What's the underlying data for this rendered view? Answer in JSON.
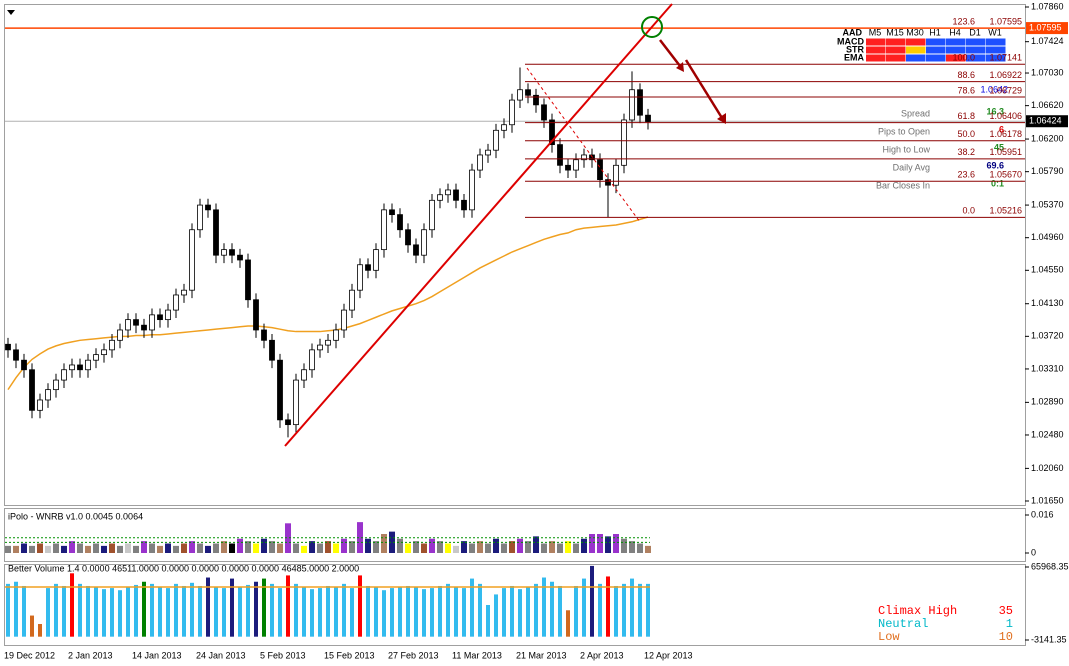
{
  "chart_data": [
    {
      "type": "candlestick",
      "categories": [
        "19 Dec 2012",
        null,
        null,
        null,
        null,
        null,
        null,
        null,
        "2 Jan 2013",
        null,
        null,
        null,
        null,
        null,
        null,
        null,
        "14 Jan 2013",
        null,
        null,
        null,
        null,
        null,
        null,
        null,
        "24 Jan 2013",
        null,
        null,
        null,
        null,
        null,
        null,
        null,
        "5 Feb 2013",
        null,
        null,
        null,
        null,
        null,
        null,
        null,
        "15 Feb 2013",
        null,
        null,
        null,
        null,
        null,
        null,
        null,
        "27 Feb 2013",
        null,
        null,
        null,
        null,
        null,
        null,
        null,
        "11 Mar 2013",
        null,
        null,
        null,
        null,
        null,
        null,
        null,
        "21 Mar 2013",
        null,
        null,
        null,
        null,
        null,
        null,
        null,
        "2 Apr 2013",
        null,
        null,
        null,
        null,
        null,
        null,
        null,
        "12 Apr 2013"
      ],
      "open": [
        1.0362,
        1.0355,
        1.0342,
        1.033,
        1.0279,
        1.0292,
        1.0305,
        1.0317,
        1.033,
        1.0336,
        1.033,
        1.0342,
        1.0349,
        1.0355,
        1.0367,
        1.038,
        1.0393,
        1.0386,
        1.038,
        1.0399,
        1.0393,
        1.0405,
        1.0424,
        1.043,
        1.0506,
        1.0537,
        1.0531,
        1.0474,
        1.0481,
        1.0474,
        1.0468,
        1.0418,
        1.038,
        1.0367,
        1.0342,
        1.0267,
        1.0261,
        1.0317,
        1.033,
        1.0355,
        1.0361,
        1.0367,
        1.038,
        1.0405,
        1.043,
        1.0462,
        1.0455,
        1.0481,
        1.0531,
        1.0525,
        1.0506,
        1.0487,
        1.0474,
        1.0506,
        1.0543,
        1.055,
        1.0556,
        1.0543,
        1.0531,
        1.0581,
        1.06,
        1.0606,
        1.0631,
        1.0638,
        1.0669,
        1.0682,
        1.0675,
        1.0663,
        1.0644,
        1.0613,
        1.0587,
        1.0581,
        1.0594,
        1.06,
        1.0594,
        1.0569,
        1.0562,
        1.0587,
        1.0644,
        1.0682,
        1.065
      ],
      "high": [
        1.037,
        1.0363,
        1.035,
        1.0338,
        1.03,
        1.0313,
        1.0325,
        1.0338,
        1.0344,
        1.0344,
        1.035,
        1.0357,
        1.0363,
        1.0375,
        1.0388,
        1.0401,
        1.0401,
        1.0394,
        1.0407,
        1.0407,
        1.0413,
        1.0432,
        1.0438,
        1.0514,
        1.0545,
        1.0545,
        1.0539,
        1.0489,
        1.0489,
        1.0482,
        1.0476,
        1.0426,
        1.0388,
        1.0375,
        1.035,
        1.0275,
        1.0325,
        1.0338,
        1.0363,
        1.0369,
        1.0375,
        1.0388,
        1.0413,
        1.0438,
        1.047,
        1.047,
        1.0489,
        1.0539,
        1.0539,
        1.0533,
        1.0514,
        1.0495,
        1.0514,
        1.0551,
        1.0558,
        1.0564,
        1.0564,
        1.0551,
        1.0589,
        1.0608,
        1.0614,
        1.0639,
        1.0646,
        1.0677,
        1.071,
        1.069,
        1.0683,
        1.0671,
        1.0652,
        1.0621,
        1.0595,
        1.0602,
        1.0608,
        1.0608,
        1.0602,
        1.0577,
        1.0595,
        1.0652,
        1.0705,
        1.069,
        1.0658
      ],
      "low": [
        1.0345,
        1.0332,
        1.032,
        1.0269,
        1.0269,
        1.0282,
        1.0295,
        1.0307,
        1.032,
        1.032,
        1.032,
        1.0332,
        1.0339,
        1.0345,
        1.0357,
        1.037,
        1.0376,
        1.037,
        1.037,
        1.0383,
        1.0383,
        1.0395,
        1.0414,
        1.042,
        1.0496,
        1.0521,
        1.0464,
        1.0464,
        1.0464,
        1.0458,
        1.0408,
        1.037,
        1.0357,
        1.0332,
        1.0257,
        1.0245,
        1.0251,
        1.0307,
        1.032,
        1.0345,
        1.0351,
        1.0357,
        1.037,
        1.0395,
        1.042,
        1.0445,
        1.0445,
        1.0471,
        1.0515,
        1.0496,
        1.0477,
        1.0464,
        1.0464,
        1.0496,
        1.0533,
        1.054,
        1.0533,
        1.0521,
        1.0521,
        1.0571,
        1.059,
        1.0596,
        1.0621,
        1.0628,
        1.0659,
        1.0665,
        1.0653,
        1.0634,
        1.0603,
        1.0577,
        1.0571,
        1.0571,
        1.0584,
        1.0584,
        1.0559,
        1.0522,
        1.0552,
        1.0577,
        1.0634,
        1.064,
        1.0632
      ],
      "close": [
        1.0355,
        1.0342,
        1.033,
        1.0279,
        1.0292,
        1.0305,
        1.0317,
        1.033,
        1.0336,
        1.033,
        1.0342,
        1.0349,
        1.0355,
        1.0367,
        1.038,
        1.0393,
        1.0386,
        1.038,
        1.0399,
        1.0393,
        1.0405,
        1.0424,
        1.043,
        1.0506,
        1.0537,
        1.0531,
        1.0474,
        1.0481,
        1.0474,
        1.0468,
        1.0418,
        1.038,
        1.0367,
        1.0342,
        1.0267,
        1.0261,
        1.0317,
        1.033,
        1.0355,
        1.0361,
        1.0367,
        1.038,
        1.0405,
        1.043,
        1.0462,
        1.0455,
        1.0481,
        1.0531,
        1.0525,
        1.0506,
        1.0487,
        1.0474,
        1.0506,
        1.0543,
        1.055,
        1.0556,
        1.0543,
        1.0531,
        1.0581,
        1.06,
        1.0606,
        1.0631,
        1.0638,
        1.0669,
        1.0682,
        1.0675,
        1.0663,
        1.0644,
        1.0613,
        1.0587,
        1.0581,
        1.0594,
        1.06,
        1.0594,
        1.0569,
        1.0562,
        1.0587,
        1.0644,
        1.0682,
        1.065,
        1.0642
      ],
      "ma": [
        1.0305,
        1.032,
        1.0333,
        1.0343,
        1.035,
        1.0356,
        1.036,
        1.0363,
        1.0365,
        1.0367,
        1.0368,
        1.0369,
        1.037,
        1.0371,
        1.0372,
        1.0372,
        1.0373,
        1.0373,
        1.0374,
        1.0374,
        1.0375,
        1.0376,
        1.0377,
        1.0378,
        1.0379,
        1.038,
        1.0381,
        1.0382,
        1.0383,
        1.0384,
        1.0385,
        1.0385,
        1.0384,
        1.0383,
        1.0381,
        1.0379,
        1.0378,
        1.0378,
        1.0378,
        1.0378,
        1.0379,
        1.038,
        1.0382,
        1.0385,
        1.0388,
        1.0392,
        1.0396,
        1.04,
        1.0404,
        1.0407,
        1.041,
        1.0413,
        1.0417,
        1.0422,
        1.0428,
        1.0434,
        1.044,
        1.0446,
        1.0452,
        1.0458,
        1.0463,
        1.0468,
        1.0473,
        1.0478,
        1.0482,
        1.0486,
        1.049,
        1.0494,
        1.0497,
        1.05,
        1.0502,
        1.0506,
        1.0508,
        1.0509,
        1.051,
        1.0511,
        1.0512,
        1.0514,
        1.0516,
        1.0519,
        1.0522
      ],
      "ma_color": "#f0a020",
      "ylim": [
        1.0165,
        1.0786
      ],
      "yticks": [
        {
          "value": 1.0786,
          "label": "1.07860"
        },
        1.07424,
        {
          "value": 1.0703,
          "label": "1.07030"
        },
        {
          "value": 1.0662,
          "label": "1.06620"
        },
        {
          "value": 1.062,
          "label": "1.06200"
        },
        {
          "value": 1.0579,
          "label": "1.05790"
        },
        {
          "value": 1.0537,
          "label": "1.05370"
        },
        {
          "value": 1.0496,
          "label": "1.04960"
        },
        {
          "value": 1.0455,
          "label": "1.04550"
        },
        {
          "value": 1.0413,
          "label": "1.04130"
        },
        {
          "value": 1.0372,
          "label": "1.03720"
        },
        {
          "value": 1.0331,
          "label": "1.03310"
        },
        {
          "value": 1.0289,
          "label": "1.02890"
        },
        {
          "value": 1.0248,
          "label": "1.02480"
        },
        {
          "value": 1.0206,
          "label": "1.02060"
        },
        {
          "value": 1.0165,
          "label": "1.01650"
        }
      ],
      "current_price": 1.06424,
      "fib_levels": [
        {
          "ratio": "123.6",
          "price": 1.07595
        },
        {
          "ratio": "100.0",
          "price": 1.07141
        },
        {
          "ratio": "88.6",
          "price": 1.06922
        },
        {
          "ratio": "78.6",
          "price": 1.06729
        },
        {
          "ratio": "61.8",
          "price": 1.06406
        },
        {
          "ratio": "50.0",
          "price": 1.06178
        },
        {
          "ratio": "38.2",
          "price": 1.05951
        },
        {
          "ratio": "23.6",
          "price": {
            "value": 1.0567,
            "label": "1.05670"
          }
        },
        {
          "ratio": "0.0",
          "price": 1.05216
        }
      ]
    },
    {
      "type": "bar",
      "title": "iPolo - WNRB v1.0 0.0045 0.0064",
      "values": [
        0.003,
        0.003,
        0.004,
        0.003,
        0.004,
        0.003,
        0.004,
        0.003,
        0.005,
        0.004,
        0.003,
        0.004,
        0.003,
        0.004,
        0.003,
        0.004,
        0.003,
        0.005,
        0.004,
        0.003,
        0.004,
        0.003,
        0.004,
        0.005,
        0.004,
        0.003,
        0.004,
        0.005,
        0.004,
        0.006,
        0.005,
        0.004,
        0.006,
        0.005,
        0.004,
        0.0125,
        0.004,
        0.003,
        0.005,
        0.004,
        0.005,
        0.004,
        0.006,
        0.005,
        0.013,
        0.006,
        0.005,
        0.008,
        0.009,
        0.006,
        0.004,
        0.005,
        0.004,
        0.006,
        0.005,
        0.004,
        0.003,
        0.005,
        0.004,
        0.005,
        0.004,
        0.006,
        0.004,
        0.005,
        0.006,
        0.005,
        0.007,
        0.004,
        0.005,
        0.004,
        0.005,
        0.004,
        0.006,
        0.008,
        0.008,
        0.007,
        0.008,
        0.006,
        0.005,
        0.004,
        0.003
      ],
      "colors": [
        "#808080",
        "#b08060",
        "#1c1c7c",
        "#808080",
        "#a0522d",
        "#c8c8c8",
        "#808080",
        "#1c1c7c",
        "#9933cc",
        "#808080",
        "#b08060",
        "#808080",
        "#1c1c7c",
        "#a0522d",
        "#808080",
        "#c8c8c8",
        "#808080",
        "#9933cc",
        "#808080",
        "#b08060",
        "#1c1c7c",
        "#808080",
        "#a0522d",
        "#9933cc",
        "#808080",
        "#1c1c7c",
        "#808080",
        "#b08060",
        "#000000",
        "#9933cc",
        "#808080",
        "#ffff00",
        "#1c1c7c",
        "#808080",
        "#b08060",
        "#9933cc",
        "#808080",
        "#ffff00",
        "#1c1c7c",
        "#808080",
        "#a0522d",
        "#ffff00",
        "#9933cc",
        "#808080",
        "#9933cc",
        "#1c1c7c",
        "#808080",
        "#b08060",
        "#1c1c7c",
        "#808080",
        "#ffff00",
        "#808080",
        "#a0522d",
        "#9933cc",
        "#808080",
        "#ffff00",
        "#c8c8c8",
        "#1c1c7c",
        "#808080",
        "#b08060",
        "#808080",
        "#1c1c7c",
        "#808080",
        "#a0522d",
        "#9933cc",
        "#808080",
        "#1c1c7c",
        "#808080",
        "#b08060",
        "#808080",
        "#ffff00",
        "#808080",
        "#1c1c7c",
        "#9933cc",
        "#9933cc",
        "#1c1c7c",
        "#9933cc",
        "#808080",
        "#808080",
        "#808080",
        "#b08060"
      ],
      "levels": [
        0.0045,
        0.0064
      ],
      "ylim": [
        0,
        0.016
      ],
      "yticks": [
        0.016,
        0
      ]
    },
    {
      "type": "bar",
      "title": "Better Volume 1.4 0.0000 46511.0000 0.0000 0.0000 0.0000 0.0000 46485.0000 2.0000",
      "values": [
        50000,
        52000,
        48000,
        20000,
        12000,
        46000,
        50000,
        48000,
        60000,
        50000,
        48000,
        47000,
        45000,
        46000,
        44000,
        47000,
        49000,
        52000,
        50000,
        47000,
        46000,
        50000,
        48000,
        51000,
        48000,
        56000,
        47000,
        46000,
        55000,
        47000,
        49000,
        52000,
        55000,
        50000,
        46000,
        58000,
        50000,
        47000,
        45000,
        46000,
        48000,
        47000,
        50000,
        46000,
        58000,
        48000,
        47000,
        44000,
        46000,
        47000,
        48000,
        47000,
        45000,
        46000,
        48000,
        50000,
        47000,
        46000,
        55000,
        50000,
        30000,
        40000,
        46000,
        48000,
        45000,
        47000,
        50000,
        56000,
        52000,
        48000,
        25000,
        48000,
        55000,
        67000,
        50000,
        57000,
        48000,
        50000,
        55000,
        50000,
        50000
      ],
      "colors": [
        "#33bbee",
        "#33bbee",
        "#33bbee",
        "#d2691e",
        "#d2691e",
        "#33bbee",
        "#33bbee",
        "#33bbee",
        "#ff0000",
        "#33bbee",
        "#33bbee",
        "#33bbee",
        "#33bbee",
        "#33bbee",
        "#33bbee",
        "#33bbee",
        "#33bbee",
        "#008000",
        "#33bbee",
        "#33bbee",
        "#33bbee",
        "#33bbee",
        "#33bbee",
        "#33bbee",
        "#33bbee",
        "#1c1c7c",
        "#33bbee",
        "#33bbee",
        "#1c1c7c",
        "#33bbee",
        "#33bbee",
        "#1c1c7c",
        "#008000",
        "#33bbee",
        "#33bbee",
        "#ff0000",
        "#33bbee",
        "#33bbee",
        "#33bbee",
        "#33bbee",
        "#33bbee",
        "#33bbee",
        "#33bbee",
        "#33bbee",
        "#ff0000",
        "#33bbee",
        "#33bbee",
        "#33bbee",
        "#33bbee",
        "#33bbee",
        "#33bbee",
        "#33bbee",
        "#33bbee",
        "#33bbee",
        "#33bbee",
        "#33bbee",
        "#33bbee",
        "#33bbee",
        "#33bbee",
        "#33bbee",
        "#33bbee",
        "#33bbee",
        "#33bbee",
        "#33bbee",
        "#33bbee",
        "#33bbee",
        "#33bbee",
        "#33bbee",
        "#33bbee",
        "#33bbee",
        "#d2691e",
        "#33bbee",
        "#33bbee",
        "#1c1c7c",
        "#33bbee",
        "#ff0000",
        "#33bbee",
        "#33bbee",
        "#33bbee",
        "#33bbee",
        "#33bbee"
      ],
      "ma": 47000,
      "ma_color": "#f0a020",
      "ylim": [
        -3141.35,
        65968.35
      ],
      "yticks": [
        65968.35,
        -3141.35
      ],
      "legend": [
        {
          "name": "Climax High",
          "color": "#ff0000",
          "count": 35
        },
        {
          "name": "Neutral",
          "color": "#00b8c8",
          "count": 1
        },
        {
          "name": "Low",
          "color": "#e07020",
          "count": 10
        }
      ]
    }
  ],
  "overlay": {
    "corner": "AAD",
    "timeframes": [
      "M5",
      "M15",
      "M30",
      "H1",
      "H4",
      "D1",
      "W1"
    ],
    "rows": [
      "MACD",
      "STR",
      "EMA"
    ],
    "big_price": 1.0642,
    "stats": [
      {
        "label": "Spread",
        "value": 16.3,
        "color": "#228b22"
      },
      {
        "label": "Pips to Open",
        "value": 6,
        "color": "#e00000"
      },
      {
        "label": "High to Low",
        "value": 45,
        "color": "#228b22"
      },
      {
        "label": "Daily Avg",
        "value": 69.6,
        "color": "#000080"
      },
      {
        "label": "Bar Closes In",
        "value": "0:1",
        "color": "#228b22"
      }
    ]
  }
}
